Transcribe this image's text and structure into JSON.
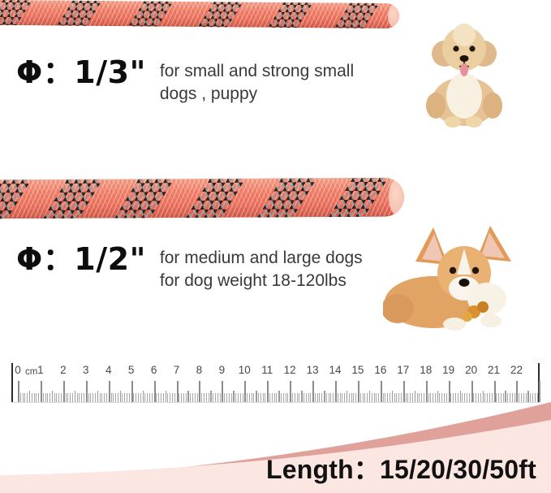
{
  "sections": {
    "size_small": {
      "diameter": "Φ：1/3\"",
      "description_lines": [
        "for small and strong small",
        "dogs , puppy"
      ]
    },
    "size_large": {
      "diameter": "Φ：1/2\"",
      "description_lines": [
        "for medium and large dogs",
        "for dog weight 18-120lbs"
      ]
    }
  },
  "ruler": {
    "unit_label": "cm",
    "numbers": [
      "0",
      "1",
      "2",
      "3",
      "4",
      "5",
      "6",
      "7",
      "8",
      "9",
      "10",
      "11",
      "12",
      "13",
      "14",
      "15",
      "16",
      "17",
      "18",
      "19",
      "20",
      "21",
      "22"
    ]
  },
  "footer": {
    "length_label": "Length：15/20/30/50ft"
  },
  "colors": {
    "rope_coral": "#f3806a",
    "rope_end_cap": "#f7c3b2",
    "reflective_black": "#1d1d1d",
    "reflective_gray": "#9a9a9a",
    "wave_light_pink": "#fbe6e2",
    "wave_dark_pink": "#dfa19a"
  }
}
